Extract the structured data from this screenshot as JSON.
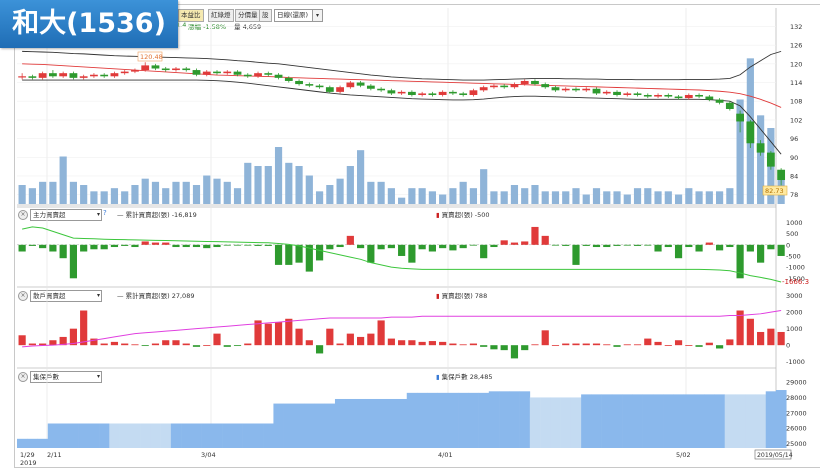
{
  "title": "和大(1536)",
  "toolbar": {
    "buttons": [
      "本益比",
      "紅綠燈",
      "分價量",
      "設"
    ],
    "period": "日線(還原)",
    "quote_change": "1.4",
    "quote_pct": "漲幅 -1.58%",
    "quote_vol": "量 4,659"
  },
  "panels": {
    "p1": {
      "selector": "主力買賣超",
      "cum_label": "累計買賣超(張) -16,819",
      "bar_label": "買賣超(張) -500",
      "last_value": "-1666.3",
      "help": "?"
    },
    "p2": {
      "selector": "散戶買賣超",
      "cum_label": "累計買賣超(張) 27,089",
      "bar_label": "買賣超(張) 788"
    },
    "p3": {
      "selector": "集保戶數",
      "bar_label": "集保戶數 28,485"
    }
  },
  "x_axis": {
    "labels": [
      "1/29",
      "2/11",
      "3/04",
      "4/01",
      "5/02"
    ],
    "year": "2019",
    "end_date": "2019/05/14"
  },
  "price_labels": {
    "high": "120.48",
    "last": "82.73"
  },
  "chart_data": [
    {
      "type": "candlestick",
      "name": "price",
      "yticks": [
        78,
        84,
        90,
        96,
        102,
        108,
        114,
        120,
        126,
        132
      ],
      "ylim": [
        75,
        136
      ],
      "candles": [
        [
          116,
          116,
          115,
          117
        ],
        [
          116,
          115.5,
          115,
          116.5
        ],
        [
          115.5,
          117,
          115,
          117.5
        ],
        [
          117,
          116,
          115.5,
          118
        ],
        [
          116,
          117,
          115.5,
          117.5
        ],
        [
          117,
          115.5,
          115,
          117.5
        ],
        [
          115.5,
          116,
          115,
          116.5
        ],
        [
          116,
          116.5,
          115.5,
          117
        ],
        [
          116.5,
          116,
          115.5,
          117
        ],
        [
          116,
          117,
          115.5,
          117.5
        ],
        [
          117,
          117.5,
          116.5,
          118
        ],
        [
          117.5,
          118,
          117,
          118.5
        ],
        [
          118,
          119.5,
          117.5,
          120.5
        ],
        [
          119.5,
          118.5,
          118,
          120
        ],
        [
          118.5,
          118,
          117.5,
          119
        ],
        [
          118,
          118.5,
          117.5,
          119
        ],
        [
          118.5,
          118,
          117.5,
          119
        ],
        [
          118,
          116.5,
          116,
          118.5
        ],
        [
          116.5,
          117.5,
          116,
          118
        ],
        [
          117.5,
          117,
          116.5,
          118
        ],
        [
          117,
          117.5,
          116.5,
          118
        ],
        [
          117.5,
          116.5,
          116,
          118
        ],
        [
          116.5,
          116,
          115.5,
          117
        ],
        [
          116,
          117,
          115.5,
          117.5
        ],
        [
          117,
          116.5,
          116,
          117.5
        ],
        [
          116.5,
          115.5,
          115,
          117
        ],
        [
          115.5,
          114.5,
          114,
          116
        ],
        [
          114.5,
          113.5,
          113,
          115
        ],
        [
          113.5,
          113,
          112.5,
          114
        ],
        [
          113,
          112.5,
          112,
          113.5
        ],
        [
          112.5,
          111,
          110.5,
          113
        ],
        [
          111,
          112.5,
          110.5,
          113
        ],
        [
          112.5,
          114,
          112,
          114.5
        ],
        [
          114,
          113,
          112.5,
          114.5
        ],
        [
          113,
          112,
          111.5,
          113.5
        ],
        [
          112,
          111.5,
          111,
          112.5
        ],
        [
          111.5,
          110.5,
          110,
          112
        ],
        [
          110.5,
          111,
          110,
          111.5
        ],
        [
          111,
          110,
          109.5,
          111.5
        ],
        [
          110,
          110.5,
          109.5,
          111
        ],
        [
          110.5,
          110,
          109.5,
          111
        ],
        [
          110,
          111,
          109.5,
          111.5
        ],
        [
          111,
          110.5,
          110,
          111.5
        ],
        [
          110.5,
          110,
          109.5,
          111
        ],
        [
          110,
          111.5,
          109.5,
          112
        ],
        [
          111.5,
          112.5,
          111,
          113
        ],
        [
          112.5,
          113,
          112,
          113.5
        ],
        [
          113,
          112.5,
          112,
          113.5
        ],
        [
          112.5,
          113.5,
          112,
          114
        ],
        [
          113.5,
          114.5,
          113,
          115
        ],
        [
          114.5,
          113.5,
          113,
          115
        ],
        [
          113.5,
          112.5,
          112,
          114
        ],
        [
          112.5,
          111.5,
          111,
          113
        ],
        [
          111.5,
          112,
          111,
          112.5
        ],
        [
          112,
          111.5,
          111,
          112.5
        ],
        [
          111.5,
          112,
          111,
          112.5
        ],
        [
          112,
          110.5,
          110,
          112.5
        ],
        [
          110.5,
          111,
          110,
          111.5
        ],
        [
          111,
          110,
          109.5,
          111.5
        ],
        [
          110,
          110.5,
          109.5,
          111
        ],
        [
          110.5,
          110,
          109.5,
          111
        ],
        [
          110,
          109.5,
          109,
          110.5
        ],
        [
          109.5,
          110,
          109,
          110.5
        ],
        [
          110,
          109.5,
          109,
          110.5
        ],
        [
          109.5,
          109,
          108.5,
          110
        ],
        [
          109,
          110,
          108.5,
          110.5
        ],
        [
          110,
          109.5,
          109,
          110.5
        ],
        [
          109.5,
          108.5,
          108,
          110
        ],
        [
          108.5,
          107.5,
          107,
          109
        ],
        [
          107.5,
          105.5,
          105,
          108
        ],
        [
          104,
          101.5,
          98,
          105
        ],
        [
          101.5,
          94.5,
          93,
          102
        ],
        [
          94.5,
          91.5,
          90.5,
          95.5
        ],
        [
          91.5,
          87,
          86,
          92
        ],
        [
          86,
          82.7,
          81,
          86.5
        ]
      ],
      "upper_band": [
        124,
        123.9,
        123.8,
        123.7,
        123.5,
        123.3,
        123.2,
        123,
        122.8,
        122.6,
        122.5,
        122.4,
        122.3,
        122.2,
        122.1,
        122,
        121.9,
        121.8,
        121.7,
        121.5,
        121.3,
        121,
        120.8,
        120.5,
        120.2,
        120,
        119.6,
        119.2,
        118.8,
        118.4,
        118,
        117.6,
        117.2,
        116.8,
        116.4,
        116.1,
        115.8,
        115.6,
        115.4,
        115.2,
        115.1,
        115,
        114.9,
        114.8,
        114.8,
        114.8,
        114.9,
        115,
        115.1,
        115.2,
        115.3,
        115.3,
        115.3,
        115.2,
        115.2,
        115.1,
        115.1,
        115,
        115,
        115,
        114.9,
        114.9,
        114.9,
        114.9,
        114.9,
        115,
        115,
        115,
        115.1,
        115.3,
        116.5,
        119,
        121,
        123,
        124
      ],
      "ma_line": [
        120,
        119.9,
        119.8,
        119.6,
        119.4,
        119.2,
        119,
        118.8,
        118.6,
        118.4,
        118.2,
        118,
        117.8,
        117.6,
        117.4,
        117.2,
        117,
        116.8,
        116.6,
        116.4,
        116.3,
        116.2,
        116.1,
        116,
        115.9,
        115.8,
        115.6,
        115.5,
        115.4,
        115.3,
        115.2,
        115.1,
        115,
        114.9,
        114.8,
        114.7,
        114.6,
        114.5,
        114.4,
        114.3,
        114.2,
        114.1,
        114,
        113.9,
        113.8,
        113.7,
        113.6,
        113.5,
        113.4,
        113.3,
        113.2,
        113.1,
        113,
        112.9,
        112.8,
        112.7,
        112.6,
        112.5,
        112.4,
        112.3,
        112.2,
        112.1,
        112,
        111.9,
        111.8,
        111.7,
        111.6,
        111.4,
        111.2,
        110.9,
        110.4,
        109.6,
        108.6,
        107.4,
        106
      ],
      "lower_band": [
        114.8,
        114.8,
        114.8,
        114.8,
        114.8,
        114.8,
        114.8,
        114.8,
        114.8,
        114.8,
        114.8,
        114.8,
        114.8,
        114.8,
        114.8,
        114.8,
        114.8,
        114.8,
        114.7,
        114.6,
        114.4,
        114.1,
        113.8,
        113.4,
        113,
        112.6,
        112.2,
        111.8,
        111.4,
        111,
        110.6,
        110.3,
        110,
        109.8,
        109.6,
        109.4,
        109.2,
        109,
        108.8,
        108.7,
        108.6,
        108.5,
        108.4,
        108.4,
        108.5,
        108.7,
        109,
        109.3,
        109.5,
        109.6,
        109.6,
        109.5,
        109.4,
        109.3,
        109.2,
        109.1,
        109,
        108.9,
        108.8,
        108.7,
        108.6,
        108.6,
        108.6,
        108.6,
        108.6,
        108.6,
        108.6,
        108.5,
        108.3,
        108,
        106.5,
        103,
        99,
        95,
        91
      ],
      "volume": [
        3,
        2.5,
        3.5,
        3.5,
        7.5,
        3.5,
        3,
        2,
        2,
        2.5,
        2,
        3,
        4,
        3.5,
        2.5,
        3.5,
        3.5,
        3,
        4.5,
        4,
        3.5,
        2.5,
        6.5,
        6,
        6,
        9,
        6.5,
        6,
        4.5,
        2,
        3,
        4,
        6,
        8.5,
        3.5,
        3.5,
        2.5,
        1,
        2.5,
        2.5,
        2,
        1.5,
        2.5,
        3.5,
        2.5,
        5.5,
        2,
        2,
        3,
        2.5,
        3,
        2,
        2,
        2,
        2.5,
        1.5,
        2.5,
        2,
        2,
        1.5,
        2.5,
        2.5,
        2,
        2,
        1.5,
        2.5,
        2,
        2,
        2,
        2.5,
        16.5,
        23,
        14,
        12,
        4.5
      ]
    },
    {
      "type": "bar",
      "name": "主力買賣超",
      "yticks": [
        1000,
        500,
        0,
        -500,
        -1000,
        -1500
      ],
      "ylim": [
        -1800,
        1200
      ],
      "values": [
        -300,
        -50,
        -150,
        -300,
        -600,
        -1500,
        -300,
        -200,
        -200,
        -100,
        -50,
        -100,
        150,
        100,
        100,
        -100,
        -100,
        -100,
        -150,
        -100,
        -20,
        -30,
        -20,
        -50,
        -50,
        -900,
        -900,
        -800,
        -1200,
        -700,
        -200,
        -100,
        400,
        -150,
        -800,
        -200,
        -150,
        -500,
        -800,
        -200,
        -300,
        -150,
        -250,
        -150,
        -20,
        -600,
        -100,
        200,
        100,
        150,
        800,
        400,
        -10,
        -50,
        -900,
        -50,
        -100,
        -100,
        -50,
        -20,
        -50,
        -20,
        -300,
        -100,
        -600,
        -100,
        -300,
        100,
        -250,
        -100,
        -1500,
        -300,
        -800,
        -200,
        -500
      ],
      "cumulative": [
        700,
        800,
        750,
        600,
        450,
        300,
        280,
        270,
        250,
        240,
        230,
        220,
        210,
        200,
        190,
        180,
        170,
        160,
        150,
        140,
        130,
        120,
        110,
        100,
        90,
        60,
        20,
        -50,
        -150,
        -250,
        -350,
        -450,
        -550,
        -650,
        -800,
        -900,
        -1000,
        -1050,
        -1080,
        -1100,
        -1100,
        -1100,
        -1100,
        -1100,
        -1100,
        -1100,
        -1100,
        -1100,
        -1100,
        -1100,
        -1100,
        -1100,
        -1100,
        -1100,
        -1100,
        -1100,
        -1100,
        -1100,
        -1100,
        -1100,
        -1100,
        -1100,
        -1100,
        -1100,
        -1100,
        -1100,
        -1100,
        -1110,
        -1130,
        -1160,
        -1260,
        -1380,
        -1460,
        -1550,
        -1666
      ]
    },
    {
      "type": "bar",
      "name": "散戶買賣超",
      "yticks": [
        3000,
        2000,
        1000,
        0,
        -1000
      ],
      "ylim": [
        -1200,
        3100
      ],
      "values": [
        600,
        100,
        100,
        300,
        500,
        1000,
        2100,
        400,
        100,
        200,
        100,
        50,
        -50,
        100,
        300,
        300,
        100,
        -100,
        0,
        700,
        -100,
        -50,
        100,
        1500,
        1300,
        1400,
        1600,
        1000,
        300,
        -500,
        1000,
        100,
        700,
        500,
        700,
        1500,
        400,
        300,
        300,
        200,
        250,
        200,
        100,
        50,
        100,
        -100,
        -250,
        -300,
        -800,
        -300,
        50,
        900,
        0,
        100,
        100,
        100,
        100,
        50,
        -100,
        50,
        50,
        400,
        200,
        0,
        300,
        0,
        -100,
        150,
        -200,
        350,
        2100,
        1600,
        800,
        1000,
        800
      ],
      "cumulative": [
        -100,
        -50,
        -20,
        0,
        50,
        100,
        200,
        300,
        400,
        500,
        600,
        700,
        750,
        800,
        850,
        900,
        950,
        1000,
        1050,
        1100,
        1150,
        1200,
        1250,
        1300,
        1350,
        1400,
        1450,
        1500,
        1550,
        1600,
        1650,
        1650,
        1650,
        1650,
        1650,
        1650,
        1700,
        1700,
        1700,
        1750,
        1750,
        1750,
        1750,
        1750,
        1750,
        1750,
        1750,
        1750,
        1750,
        1750,
        1750,
        1750,
        1750,
        1750,
        1750,
        1750,
        1750,
        1750,
        1750,
        1750,
        1750,
        1750,
        1750,
        1750,
        1750,
        1750,
        1750,
        1750,
        1750,
        1800,
        1800,
        1850,
        1900,
        2000,
        2100
      ]
    },
    {
      "type": "area",
      "name": "集保戶數",
      "yticks": [
        29000,
        28000,
        27000,
        26000,
        25000
      ],
      "ylim": [
        24700,
        29400
      ],
      "values": [
        25300,
        25300,
        25300,
        26300,
        26300,
        26300,
        26300,
        26300,
        26300,
        26300,
        26300,
        26300,
        26300,
        26300,
        26300,
        26300,
        26300,
        26300,
        26300,
        26300,
        26300,
        26300,
        26300,
        26300,
        26300,
        27600,
        27600,
        27600,
        27600,
        27600,
        27600,
        27900,
        27900,
        27900,
        27900,
        27900,
        27900,
        27900,
        28300,
        28300,
        28300,
        28300,
        28300,
        28300,
        28300,
        28300,
        28400,
        28400,
        28400,
        28400,
        28000,
        28000,
        28000,
        28000,
        28000,
        28200,
        28200,
        28200,
        28200,
        28200,
        28200,
        28200,
        28200,
        28200,
        28200,
        28200,
        28200,
        28200,
        28200,
        28200,
        28200,
        28200,
        28200,
        28400,
        28485
      ],
      "light_ranges": [
        [
          9,
          14
        ],
        [
          50,
          54
        ],
        [
          69,
          72
        ]
      ]
    }
  ]
}
